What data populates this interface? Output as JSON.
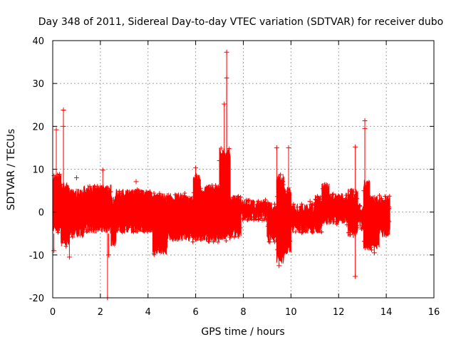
{
  "chart_data": {
    "type": "scatter",
    "title": "Day 348 of 2011, Sidereal Day-to-day VTEC variation (SDTVAR) for receiver dubo",
    "xlabel": "GPS time / hours",
    "ylabel": "SDTVAR / TECUs",
    "xlim": [
      0,
      16
    ],
    "ylim": [
      -20,
      40
    ],
    "xticks": [
      0,
      2,
      4,
      6,
      8,
      10,
      12,
      14,
      16
    ],
    "yticks": [
      -20,
      -10,
      0,
      10,
      20,
      30,
      40
    ],
    "grid": true,
    "marker": "+",
    "color": "#ff0000",
    "series": [
      {
        "name": "dubo",
        "bands": [
          [
            0.0,
            0.35,
            -5,
            9
          ],
          [
            0.35,
            0.7,
            -8,
            7
          ],
          [
            0.7,
            1.3,
            -6,
            5.5
          ],
          [
            1.3,
            2.45,
            -5,
            6.5
          ],
          [
            2.45,
            2.65,
            -8,
            4
          ],
          [
            2.65,
            4.2,
            -5,
            5.5
          ],
          [
            4.2,
            4.8,
            -10,
            4.5
          ],
          [
            4.8,
            5.6,
            -7,
            4.5
          ],
          [
            5.6,
            5.9,
            -7,
            4
          ],
          [
            5.9,
            6.2,
            -7,
            9
          ],
          [
            6.2,
            7.0,
            -7,
            6.5
          ],
          [
            7.0,
            7.45,
            -7,
            15
          ],
          [
            7.45,
            7.9,
            -6,
            4
          ],
          [
            7.9,
            9.0,
            -2,
            3
          ],
          [
            9.0,
            9.4,
            -7,
            2.5
          ],
          [
            9.4,
            9.7,
            -12,
            9
          ],
          [
            9.7,
            10.0,
            -10,
            6
          ],
          [
            10.0,
            11.0,
            -5,
            2
          ],
          [
            11.0,
            11.3,
            -5,
            4
          ],
          [
            11.3,
            11.6,
            -3,
            7
          ],
          [
            11.6,
            12.4,
            -3,
            4.5
          ],
          [
            12.4,
            12.8,
            -6,
            5.5
          ],
          [
            12.8,
            13.05,
            -4,
            2
          ],
          [
            13.05,
            13.3,
            -9,
            7.5
          ],
          [
            13.3,
            13.7,
            -9,
            4
          ],
          [
            13.7,
            14.15,
            -6,
            4
          ]
        ],
        "outliers": [
          [
            0.15,
            19.2
          ],
          [
            0.45,
            23.8
          ],
          [
            0.45,
            20.0
          ],
          [
            1.0,
            8.0
          ],
          [
            2.1,
            9.8
          ],
          [
            2.3,
            -20.0
          ],
          [
            2.35,
            -10.0
          ],
          [
            3.5,
            7.1
          ],
          [
            6.0,
            10.3
          ],
          [
            7.3,
            37.3
          ],
          [
            7.3,
            31.3
          ],
          [
            7.2,
            25.2
          ],
          [
            7.0,
            12.0
          ],
          [
            9.4,
            15.0
          ],
          [
            9.9,
            15.0
          ],
          [
            9.5,
            -12.5
          ],
          [
            10.8,
            2.5
          ],
          [
            11.5,
            5.6
          ],
          [
            12.7,
            15.2
          ],
          [
            12.7,
            -15.0
          ],
          [
            13.1,
            21.3
          ],
          [
            13.1,
            19.5
          ],
          [
            13.5,
            -9.5
          ],
          [
            0.05,
            -9.0
          ],
          [
            0.7,
            -10.5
          ]
        ]
      }
    ]
  }
}
